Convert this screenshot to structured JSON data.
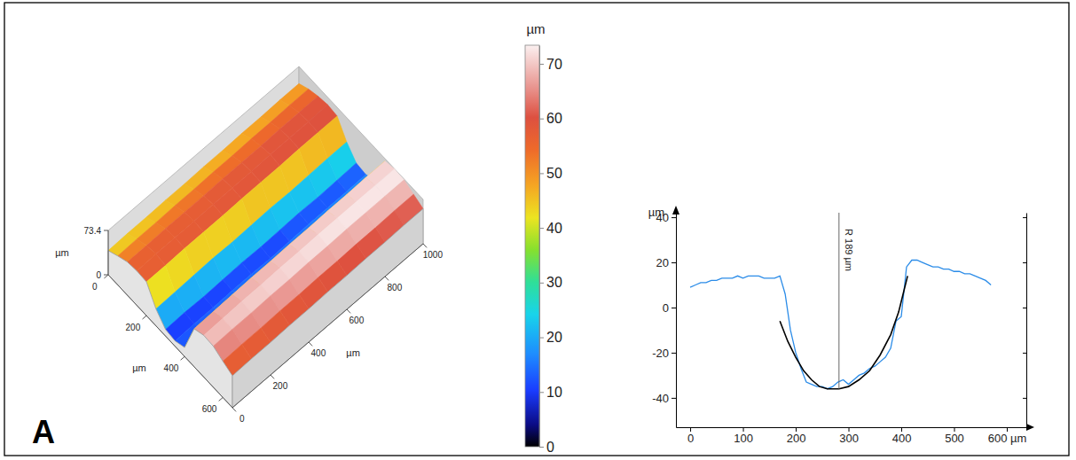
{
  "panel": "A",
  "chart_data": [
    {
      "type": "surface3d",
      "x": [
        0,
        100,
        200,
        300,
        400,
        500,
        600,
        700,
        800,
        900,
        1000
      ],
      "y": [
        0,
        50,
        100,
        150,
        200,
        250,
        300,
        350,
        400,
        450,
        500,
        550,
        600,
        650
      ],
      "z": [
        [
          40,
          48,
          55,
          57,
          56,
          28,
          11,
          9,
          15,
          63,
          69,
          68,
          60,
          53
        ],
        [
          41,
          49,
          55,
          58,
          56,
          29,
          12,
          10,
          16,
          64,
          70,
          69,
          61,
          54
        ],
        [
          41,
          49,
          56,
          58,
          57,
          30,
          11,
          10,
          17,
          65,
          71,
          69,
          61,
          54
        ],
        [
          42,
          50,
          56,
          58,
          57,
          31,
          12,
          11,
          18,
          66,
          71,
          70,
          62,
          55
        ],
        [
          42,
          50,
          56,
          59,
          57,
          30,
          13,
          11,
          17,
          66,
          72,
          70,
          62,
          55
        ],
        [
          43,
          51,
          57,
          59,
          58,
          31,
          12,
          10,
          18,
          67,
          72,
          71,
          63,
          56
        ],
        [
          43,
          51,
          57,
          59,
          58,
          32,
          13,
          11,
          19,
          67,
          73,
          71,
          63,
          56
        ],
        [
          44,
          52,
          57,
          60,
          58,
          31,
          14,
          12,
          19,
          68,
          73,
          72,
          64,
          57
        ],
        [
          44,
          52,
          58,
          60,
          59,
          32,
          13,
          12,
          20,
          68,
          73,
          72,
          64,
          57
        ],
        [
          45,
          53,
          58,
          60,
          59,
          33,
          14,
          12,
          20,
          69,
          73,
          72,
          65,
          58
        ],
        [
          45,
          53,
          58,
          61,
          59,
          33,
          15,
          13,
          21,
          69,
          73,
          72,
          65,
          58
        ]
      ],
      "xlim": [
        0,
        1000
      ],
      "ylim": [
        0,
        650
      ],
      "zlim": [
        0,
        73.4
      ],
      "xticks": [
        0,
        200,
        400,
        600,
        800,
        1000
      ],
      "yticks": [
        0,
        200,
        400,
        600
      ],
      "zticks": [
        0,
        73.4
      ],
      "xlabel": "µm",
      "ylabel": "µm",
      "zlabel": "µm",
      "colorbar": {
        "range": [
          0,
          73.4
        ],
        "ticks": [
          0,
          10,
          20,
          30,
          40,
          50,
          60,
          70
        ],
        "label": "µm"
      }
    },
    {
      "type": "line",
      "xlim": [
        -27,
        637
      ],
      "ylim": [
        -53,
        42
      ],
      "xticks": [
        0,
        100,
        200,
        300,
        400,
        500,
        {
          "value": 600,
          "label": "600 µm"
        }
      ],
      "yticks": [
        -40,
        -20,
        0,
        20,
        40
      ],
      "ylabel": "µm",
      "series": [
        {
          "color": "#2b8ce8",
          "x": [
            0,
            10,
            20,
            30,
            40,
            50,
            60,
            70,
            80,
            90,
            100,
            110,
            120,
            130,
            140,
            150,
            160,
            170,
            180,
            190,
            200,
            210,
            220,
            230,
            240,
            250,
            260,
            270,
            280,
            290,
            300,
            310,
            320,
            330,
            340,
            350,
            360,
            370,
            380,
            390,
            400,
            410,
            420,
            430,
            440,
            450,
            460,
            470,
            480,
            490,
            500,
            510,
            520,
            530,
            540,
            550,
            560,
            570
          ],
          "values": [
            9,
            10,
            11,
            11,
            12,
            12,
            13,
            13,
            13,
            14,
            13,
            14,
            14,
            14,
            13,
            13,
            13,
            14,
            6,
            -10,
            -20,
            -27,
            -33,
            -34,
            -35,
            -35,
            -36,
            -35,
            -33,
            -32,
            -34,
            -32,
            -30,
            -29,
            -27,
            -26,
            -24,
            -22,
            -18,
            -6,
            -4,
            18,
            21,
            21,
            20,
            19,
            18,
            18,
            17,
            17,
            16,
            16,
            15,
            15,
            14,
            13,
            12,
            10
          ]
        },
        {
          "color": "#000000",
          "x": [
            170,
            185,
            200,
            215,
            230,
            245,
            260,
            282,
            300,
            320,
            340,
            360,
            380,
            395,
            412
          ],
          "values": [
            -6,
            -15,
            -22,
            -28,
            -32,
            -35,
            -36,
            -36,
            -35,
            -32,
            -28,
            -21,
            -12,
            -2,
            14
          ]
        }
      ],
      "annotations": [
        {
          "text": "R 189 µm",
          "x": 282,
          "y": -36
        }
      ]
    }
  ]
}
